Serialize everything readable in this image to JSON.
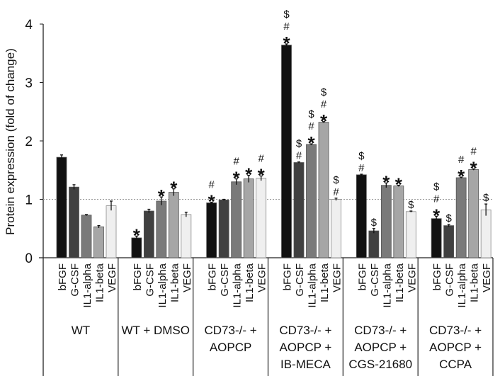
{
  "chart_data": {
    "type": "bar",
    "title": "",
    "xlabel": "",
    "ylabel": "Protein expression (fold of change)",
    "ylim": [
      0,
      4
    ],
    "yticks": [
      "0",
      "1",
      "2",
      "3",
      "4"
    ],
    "reference_line": 1,
    "grid": false,
    "legend": "none",
    "categories": [
      "bFGF",
      "G-CSF",
      "IL1-alpha",
      "IL1-beta",
      "VEGF"
    ],
    "series_colors": [
      "#111111",
      "#404040",
      "#7a7a7a",
      "#a6a6a6",
      "#efefef"
    ],
    "groups": [
      {
        "label": [
          "WT"
        ],
        "values": [
          1.72,
          1.21,
          0.73,
          0.53,
          0.89
        ],
        "errors": [
          0.04,
          0.04,
          0.01,
          0.02,
          0.08
        ],
        "annotations": [
          "",
          "",
          "",
          "",
          ""
        ]
      },
      {
        "label": [
          "WT + DMSO"
        ],
        "values": [
          0.34,
          0.8,
          0.97,
          1.12,
          0.74
        ],
        "errors": [
          0.03,
          0.03,
          0.07,
          0.06,
          0.04
        ],
        "annotations": [
          "*",
          "",
          "*",
          "*",
          ""
        ]
      },
      {
        "label": [
          "CD73-/- +",
          "AOPCP"
        ],
        "values": [
          0.94,
          0.99,
          1.3,
          1.35,
          1.36
        ],
        "errors": [
          0.01,
          0.01,
          0.05,
          0.06,
          0.04
        ],
        "annotations": [
          "*#",
          "",
          "*#",
          "*",
          "*#"
        ]
      },
      {
        "label": [
          "CD73-/- +",
          "AOPCP +",
          "IB-MECA"
        ],
        "values": [
          3.64,
          1.63,
          1.94,
          2.32,
          1.0
        ],
        "errors": [
          0.02,
          0.01,
          0.01,
          0.01,
          0.02
        ],
        "annotations": [
          "*#$",
          "#$",
          "*#$",
          "*#$",
          "#$"
        ]
      },
      {
        "label": [
          "CD73-/- +",
          "AOPCP +",
          "CGS-21680"
        ],
        "values": [
          1.42,
          0.46,
          1.24,
          1.23,
          0.79
        ],
        "errors": [
          0.01,
          0.04,
          0.04,
          0.01,
          0.01
        ],
        "annotations": [
          "#$",
          "$",
          "*",
          "*",
          "$"
        ]
      },
      {
        "label": [
          "CD73-/- +",
          "AOPCP +",
          "CCPA"
        ],
        "values": [
          0.67,
          0.55,
          1.37,
          1.51,
          0.82
        ],
        "errors": [
          0.04,
          0.02,
          0.01,
          0.01,
          0.1
        ],
        "annotations": [
          "*#$",
          "$",
          "*#",
          "*#",
          "$"
        ]
      }
    ]
  }
}
